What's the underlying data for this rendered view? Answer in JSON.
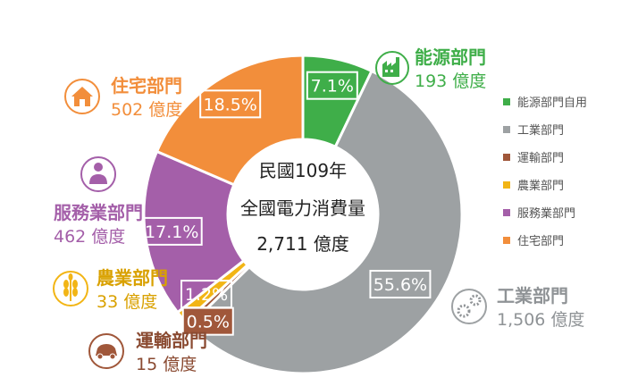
{
  "chart_data": {
    "type": "pie",
    "style": "donut",
    "center": {
      "line1": "民國109年",
      "line2": "全國電力消費量",
      "total": "2,711 億度"
    },
    "series": [
      {
        "key": "energy",
        "legend": "能源部門自用",
        "callout": "能源部門",
        "value_text": "193 億度",
        "value": 193,
        "percent": 7.1,
        "percent_label": "7.1%",
        "color": "#3fae49"
      },
      {
        "key": "industry",
        "legend": "工業部門",
        "callout": "工業部門",
        "value_text": "1,506 億度",
        "value": 1506,
        "percent": 55.6,
        "percent_label": "55.6%",
        "color": "#9da1a3"
      },
      {
        "key": "transport",
        "legend": "運輸部門",
        "callout": "運輸部門",
        "value_text": "15 億度",
        "value": 15,
        "percent": 0.5,
        "percent_label": "0.5%",
        "color": "#a0573a"
      },
      {
        "key": "agri",
        "legend": "農業部門",
        "callout": "農業部門",
        "value_text": "33 億度",
        "value": 33,
        "percent": 1.2,
        "percent_label": "1.2%",
        "color": "#f2b515"
      },
      {
        "key": "service",
        "legend": "服務業部門",
        "callout": "服務業部門",
        "value_text": "462 億度",
        "value": 462,
        "percent": 17.1,
        "percent_label": "17.1%",
        "color": "#a45fa9"
      },
      {
        "key": "resid",
        "legend": "住宅部門",
        "callout": "住宅部門",
        "value_text": "502 億度",
        "value": 502,
        "percent": 18.5,
        "percent_label": "18.5%",
        "color": "#f28e3b"
      }
    ],
    "legend_position": "right"
  },
  "icons": {
    "energy": "factory-icon",
    "industry": "gears-icon",
    "transport": "car-icon",
    "agri": "wheat-icon",
    "service": "person-icon",
    "resid": "house-icon"
  },
  "colors": {
    "center_total": "#e31e24",
    "callout_industry": "#8f9396",
    "callout_transport": "#8a4a31",
    "callout_agri": "#d9a100"
  }
}
